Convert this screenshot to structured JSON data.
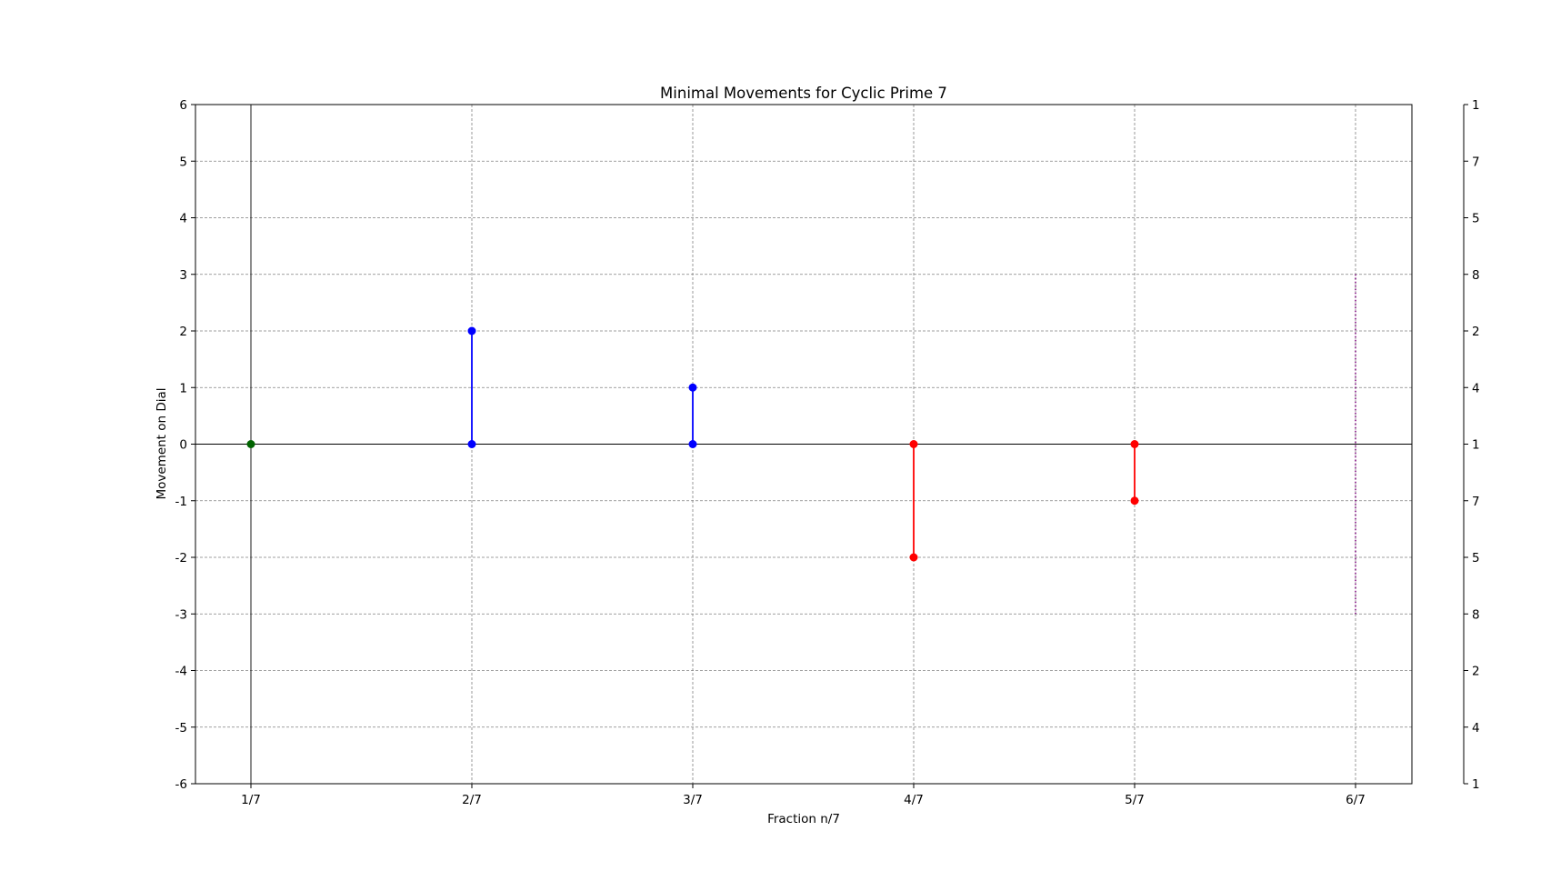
{
  "chart_data": {
    "type": "line",
    "title": "Minimal Movements for Cyclic Prime 7",
    "xlabel": "Fraction n/7",
    "ylabel": "Movement on Dial",
    "categories": [
      "1/7",
      "2/7",
      "3/7",
      "4/7",
      "5/7",
      "6/7"
    ],
    "ylim": [
      -6,
      6
    ],
    "yticks": [
      -6,
      -5,
      -4,
      -3,
      -2,
      -1,
      0,
      1,
      2,
      3,
      4,
      5,
      6
    ],
    "right_axis_labels": [
      "1",
      "4",
      "2",
      "8",
      "5",
      "7",
      "1",
      "4",
      "2",
      "8",
      "5",
      "7",
      "1"
    ],
    "grid": true,
    "movements": [
      {
        "category": "1/7",
        "from": 0,
        "to": 0,
        "color": "#006400",
        "style": "point"
      },
      {
        "category": "2/7",
        "from": 0,
        "to": 2,
        "color": "#0000ff",
        "style": "solid"
      },
      {
        "category": "3/7",
        "from": 0,
        "to": 1,
        "color": "#0000ff",
        "style": "solid"
      },
      {
        "category": "4/7",
        "from": 0,
        "to": -2,
        "color": "#ff0000",
        "style": "solid"
      },
      {
        "category": "5/7",
        "from": 0,
        "to": -1,
        "color": "#ff0000",
        "style": "solid"
      },
      {
        "category": "6/7",
        "from": -3,
        "to": 3,
        "color": "#800080",
        "style": "dotted"
      }
    ]
  }
}
